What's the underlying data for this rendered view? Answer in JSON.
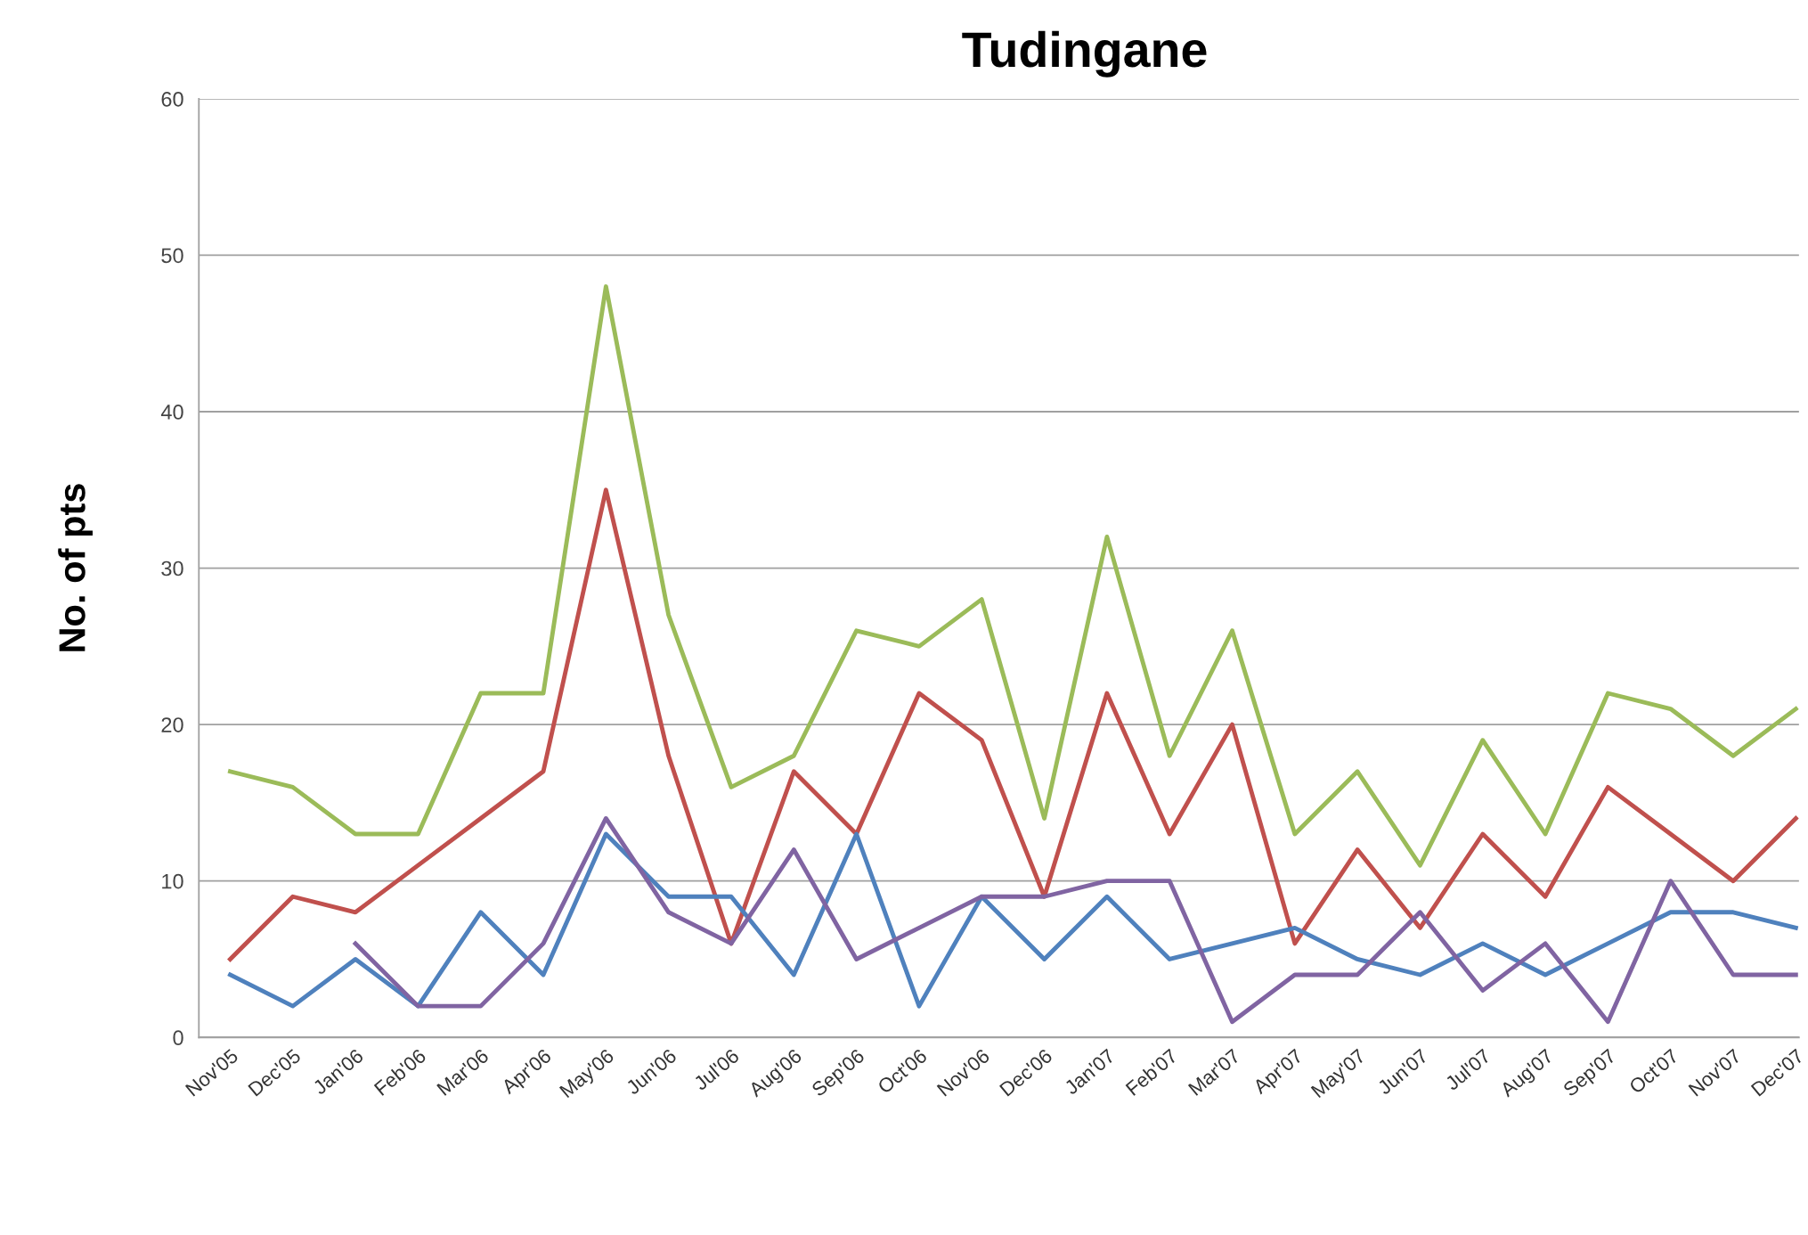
{
  "chart_data": {
    "type": "line",
    "title": "Tudingane",
    "ylabel": "No. of pts",
    "categories": [
      "Nov'05",
      "Dec'05",
      "Jan'06",
      "Feb'06",
      "Mar'06",
      "Apr'06",
      "May'06",
      "Jun'06",
      "Jul'06",
      "Aug'06",
      "Sep'06",
      "Oct'06",
      "Nov'06",
      "Dec'06",
      "Jan'07",
      "Feb'07",
      "Mar'07",
      "Apr'07",
      "May'07",
      "Jun'07",
      "Jul'07",
      "Aug'07",
      "Sep'07",
      "Oct'07",
      "Nov'07",
      "Dec'07"
    ],
    "series": [
      {
        "color": "#9bbb59",
        "values": [
          17,
          16,
          13,
          13,
          22,
          22,
          48,
          27,
          16,
          18,
          26,
          25,
          28,
          14,
          32,
          18,
          26,
          13,
          17,
          11,
          19,
          13,
          22,
          21,
          18,
          21
        ]
      },
      {
        "color": "#c0504d",
        "values": [
          5,
          9,
          8,
          11,
          14,
          17,
          35,
          18,
          6,
          17,
          13,
          22,
          19,
          9,
          22,
          13,
          20,
          6,
          12,
          7,
          13,
          9,
          16,
          13,
          10,
          14
        ]
      },
      {
        "color": "#4f81bd",
        "values": [
          4,
          2,
          5,
          2,
          8,
          4,
          13,
          9,
          9,
          4,
          13,
          2,
          9,
          5,
          9,
          5,
          6,
          7,
          5,
          4,
          6,
          4,
          6,
          8,
          8,
          7
        ]
      },
      {
        "color": "#8064a2",
        "values": [
          null,
          null,
          6,
          2,
          2,
          6,
          14,
          8,
          6,
          12,
          5,
          7,
          9,
          9,
          10,
          10,
          1,
          4,
          4,
          8,
          3,
          6,
          1,
          10,
          4,
          4
        ]
      }
    ],
    "ylim": [
      0,
      60
    ],
    "yticks": [
      0,
      10,
      20,
      30,
      40,
      50,
      60
    ],
    "grid": "y",
    "legend": false,
    "marker": "none",
    "line_style": "solid"
  }
}
